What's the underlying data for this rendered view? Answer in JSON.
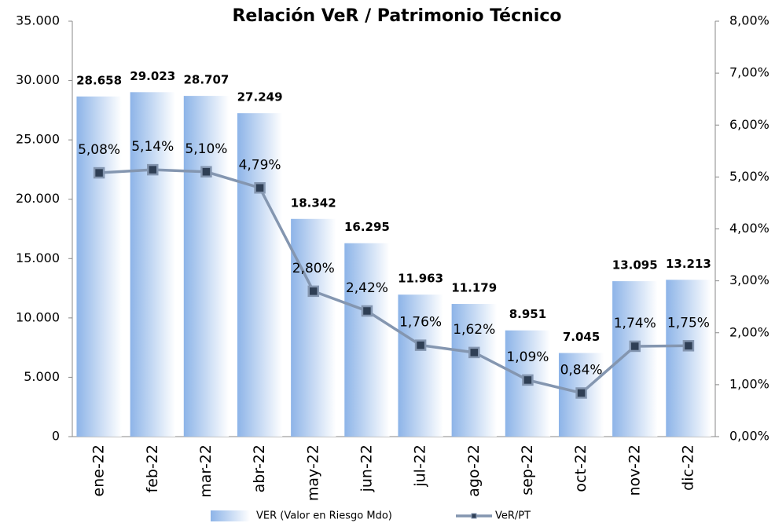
{
  "chart_data": {
    "type": "bar",
    "title": "Relación VeR / Patrimonio Técnico",
    "categories": [
      "ene-22",
      "feb-22",
      "mar-22",
      "abr-22",
      "may-22",
      "jun-22",
      "jul-22",
      "ago-22",
      "sep-22",
      "oct-22",
      "nov-22",
      "dic-22"
    ],
    "series": [
      {
        "name": "VER (Valor en Riesgo Mdo)",
        "type": "bar",
        "color": "#8db4e8",
        "values": [
          28658,
          29023,
          28707,
          27249,
          18342,
          16295,
          11963,
          11179,
          8951,
          7045,
          13095,
          13213
        ],
        "value_labels": [
          "28.658",
          "29.023",
          "28.707",
          "27.249",
          "18.342",
          "16.295",
          "11.963",
          "11.179",
          "8.951",
          "7.045",
          "13.095",
          "13.213"
        ]
      },
      {
        "name": "VeR/PT",
        "type": "line",
        "axis": "y2",
        "color": "#8496b0",
        "marker_color": "#2f3f55",
        "values": [
          5.08,
          5.14,
          5.1,
          4.79,
          2.8,
          2.42,
          1.76,
          1.62,
          1.09,
          0.84,
          1.74,
          1.75
        ],
        "value_labels": [
          "5,08%",
          "5,14%",
          "5,10%",
          "4,79%",
          "2,80%",
          "2,42%",
          "1,76%",
          "1,62%",
          "1,09%",
          "0,84%",
          "1,74%",
          "1,75%"
        ]
      }
    ],
    "ylim": [
      0,
      35000
    ],
    "yticks": [
      0,
      {
        "value": 5000,
        "label": "5.000"
      },
      {
        "value": 10000,
        "label": "10.000"
      },
      {
        "value": 15000,
        "label": "15.000"
      },
      {
        "value": 20000,
        "label": "20.000"
      },
      {
        "value": 25000,
        "label": "25.000"
      },
      {
        "value": 30000,
        "label": "30.000"
      },
      {
        "value": 35000,
        "label": "35.000"
      }
    ],
    "y2lim": [
      0,
      8
    ],
    "y2ticks": [
      {
        "value": 0,
        "label": "0,00%"
      },
      {
        "value": 1,
        "label": "1,00%"
      },
      {
        "value": 2,
        "label": "2,00%"
      },
      {
        "value": 3,
        "label": "3,00%"
      },
      {
        "value": 4,
        "label": "4,00%"
      },
      {
        "value": 5,
        "label": "5,00%"
      },
      {
        "value": 6,
        "label": "6,00%"
      },
      {
        "value": 7,
        "label": "7,00%"
      },
      {
        "value": 8,
        "label": "8,00%"
      }
    ],
    "legend": "bottom"
  }
}
